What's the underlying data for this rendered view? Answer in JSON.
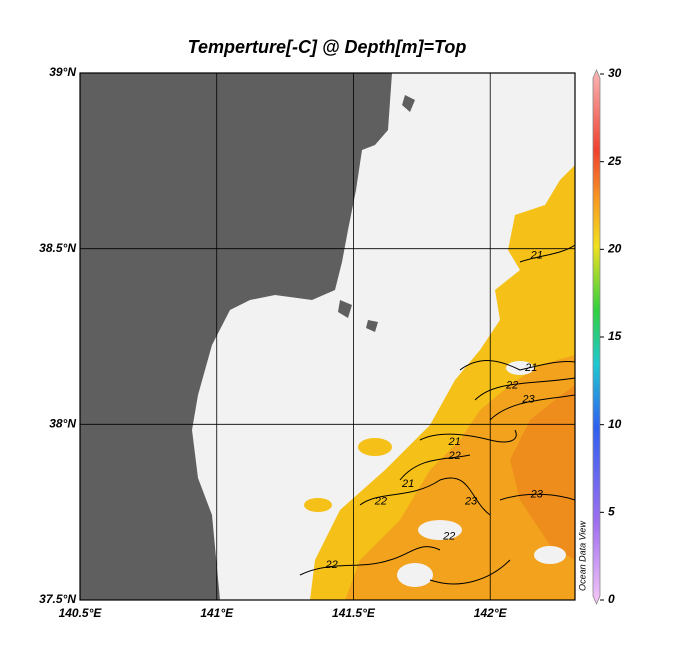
{
  "chart_data": {
    "type": "map",
    "title": "Temperture[-C] @ Depth[m]=Top",
    "xlim": [
      140.5,
      142.31
    ],
    "ylim": [
      37.5,
      39
    ],
    "xticks": [
      {
        "value": 140.5,
        "label": "140.5°E"
      },
      {
        "value": 141,
        "label": "141°E"
      },
      {
        "value": 141.5,
        "label": "141.5°E"
      },
      {
        "value": 142,
        "label": "142°E"
      }
    ],
    "yticks": [
      {
        "value": 37.5,
        "label": "37.5°N"
      },
      {
        "value": 38,
        "label": "38°N"
      },
      {
        "value": 38.5,
        "label": "38.5°N"
      },
      {
        "value": 39,
        "label": "39°N"
      }
    ],
    "grid": true,
    "colorbar": {
      "lim": [
        0,
        30
      ],
      "ticks": [
        0,
        5,
        10,
        15,
        20,
        25,
        30
      ]
    },
    "contour_labels": [
      {
        "value": 21,
        "lon": 142.17,
        "lat": 38.48
      },
      {
        "value": 21,
        "lon": 142.15,
        "lat": 38.16
      },
      {
        "value": 22,
        "lon": 142.08,
        "lat": 38.11
      },
      {
        "value": 23,
        "lon": 142.14,
        "lat": 38.07
      },
      {
        "value": 21,
        "lon": 141.87,
        "lat": 37.95
      },
      {
        "value": 22,
        "lon": 141.87,
        "lat": 37.91
      },
      {
        "value": 21,
        "lon": 141.7,
        "lat": 37.83
      },
      {
        "value": 22,
        "lon": 141.6,
        "lat": 37.78
      },
      {
        "value": 23,
        "lon": 141.93,
        "lat": 37.78
      },
      {
        "value": 23,
        "lon": 142.17,
        "lat": 37.8
      },
      {
        "value": 22,
        "lon": 141.85,
        "lat": 37.68
      },
      {
        "value": 22,
        "lon": 141.42,
        "lat": 37.6
      }
    ],
    "watermark": "Ocean Data View"
  }
}
